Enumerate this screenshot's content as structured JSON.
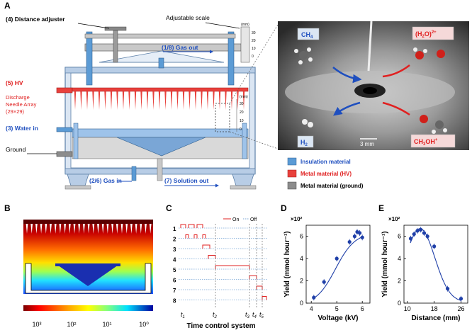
{
  "panels": {
    "A": "A",
    "B": "B",
    "C": "C",
    "D": "D",
    "E": "E"
  },
  "panelA": {
    "distance_adjuster": "(4) Distance adjuster",
    "adjustable_scale": "Adjustable scale",
    "gas_out": "(1/8) Gas out",
    "hv": "(5) HV",
    "needle_array_1": "Discharge",
    "needle_array_2": "Needle Array",
    "needle_array_3": "(29×29)",
    "water_in": "(3) Water in",
    "ground": "Ground",
    "gas_in": "(2/6) Gas in",
    "solution_out": "(7) Solution out",
    "scale_unit": "(mm)",
    "scale_ticks": [
      "30",
      "20",
      "10",
      "0"
    ],
    "scale2_ticks": [
      "30",
      "20",
      "10",
      "0"
    ],
    "photo": {
      "ch4": "CH",
      "ch4_sub": "4",
      "h2o": "(H",
      "h2o_sub": "2",
      "h2o_end": "O)",
      "h2o_sup": "2+",
      "h2": "H",
      "h2_sub": "2",
      "ch3oh": "CH",
      "ch3oh_sub": "3",
      "ch3oh_end": "OH",
      "ch3oh_sup": "+",
      "scale_bar": "3 mm"
    },
    "legend": {
      "insulation": "Insulation material",
      "metal_hv": "Metal material (HV)",
      "metal_ground": "Metal material (ground)"
    },
    "colors": {
      "insulation": "#5b9bd5",
      "hv": "#e8413c",
      "ground": "#8c8c8c",
      "blue_text": "#1f4fbf",
      "red_text": "#e02020"
    }
  },
  "panelB": {
    "colorbar_ticks": [
      "10³",
      "10²",
      "10¹",
      "10⁰"
    ]
  },
  "panelC": {
    "legend_on": "On",
    "legend_off": "Off",
    "rows": [
      "1",
      "2",
      "3",
      "4",
      "5",
      "6",
      "7",
      "8"
    ],
    "t_labels": [
      "t",
      "t",
      "t",
      "t",
      "t"
    ],
    "t_subs": [
      "1",
      "2",
      "3",
      "4",
      "5"
    ],
    "xlabel": "Time control system"
  },
  "chart_data": [
    {
      "type": "scatter",
      "ylabel_prefix": "×10²",
      "ylabel": "Yield (mmol hour⁻¹)",
      "xlabel": "Voltage (kV)",
      "x_ticks": [
        "4",
        "5",
        "6"
      ],
      "y_ticks": [
        "0",
        "2",
        "4",
        "6"
      ],
      "xlim": [
        3.8,
        6.3
      ],
      "ylim": [
        0,
        7
      ],
      "x": [
        4.1,
        4.5,
        5.0,
        5.5,
        5.7,
        5.8,
        5.9,
        6.0
      ],
      "y": [
        0.5,
        1.9,
        4.0,
        5.5,
        6.0,
        6.4,
        6.3,
        5.9
      ]
    },
    {
      "type": "scatter",
      "ylabel_prefix": "×10²",
      "ylabel": "Yield (mmol hour⁻¹)",
      "xlabel": "Distance (mm)",
      "x_ticks": [
        "10",
        "18",
        "26"
      ],
      "y_ticks": [
        "0",
        "2",
        "4",
        "6"
      ],
      "xlim": [
        9,
        28
      ],
      "ylim": [
        0,
        7
      ],
      "x": [
        11,
        12,
        13,
        14,
        15,
        16,
        18,
        22,
        26
      ],
      "y": [
        5.8,
        6.2,
        6.5,
        6.6,
        6.3,
        6.0,
        5.1,
        1.3,
        0.4
      ]
    }
  ]
}
